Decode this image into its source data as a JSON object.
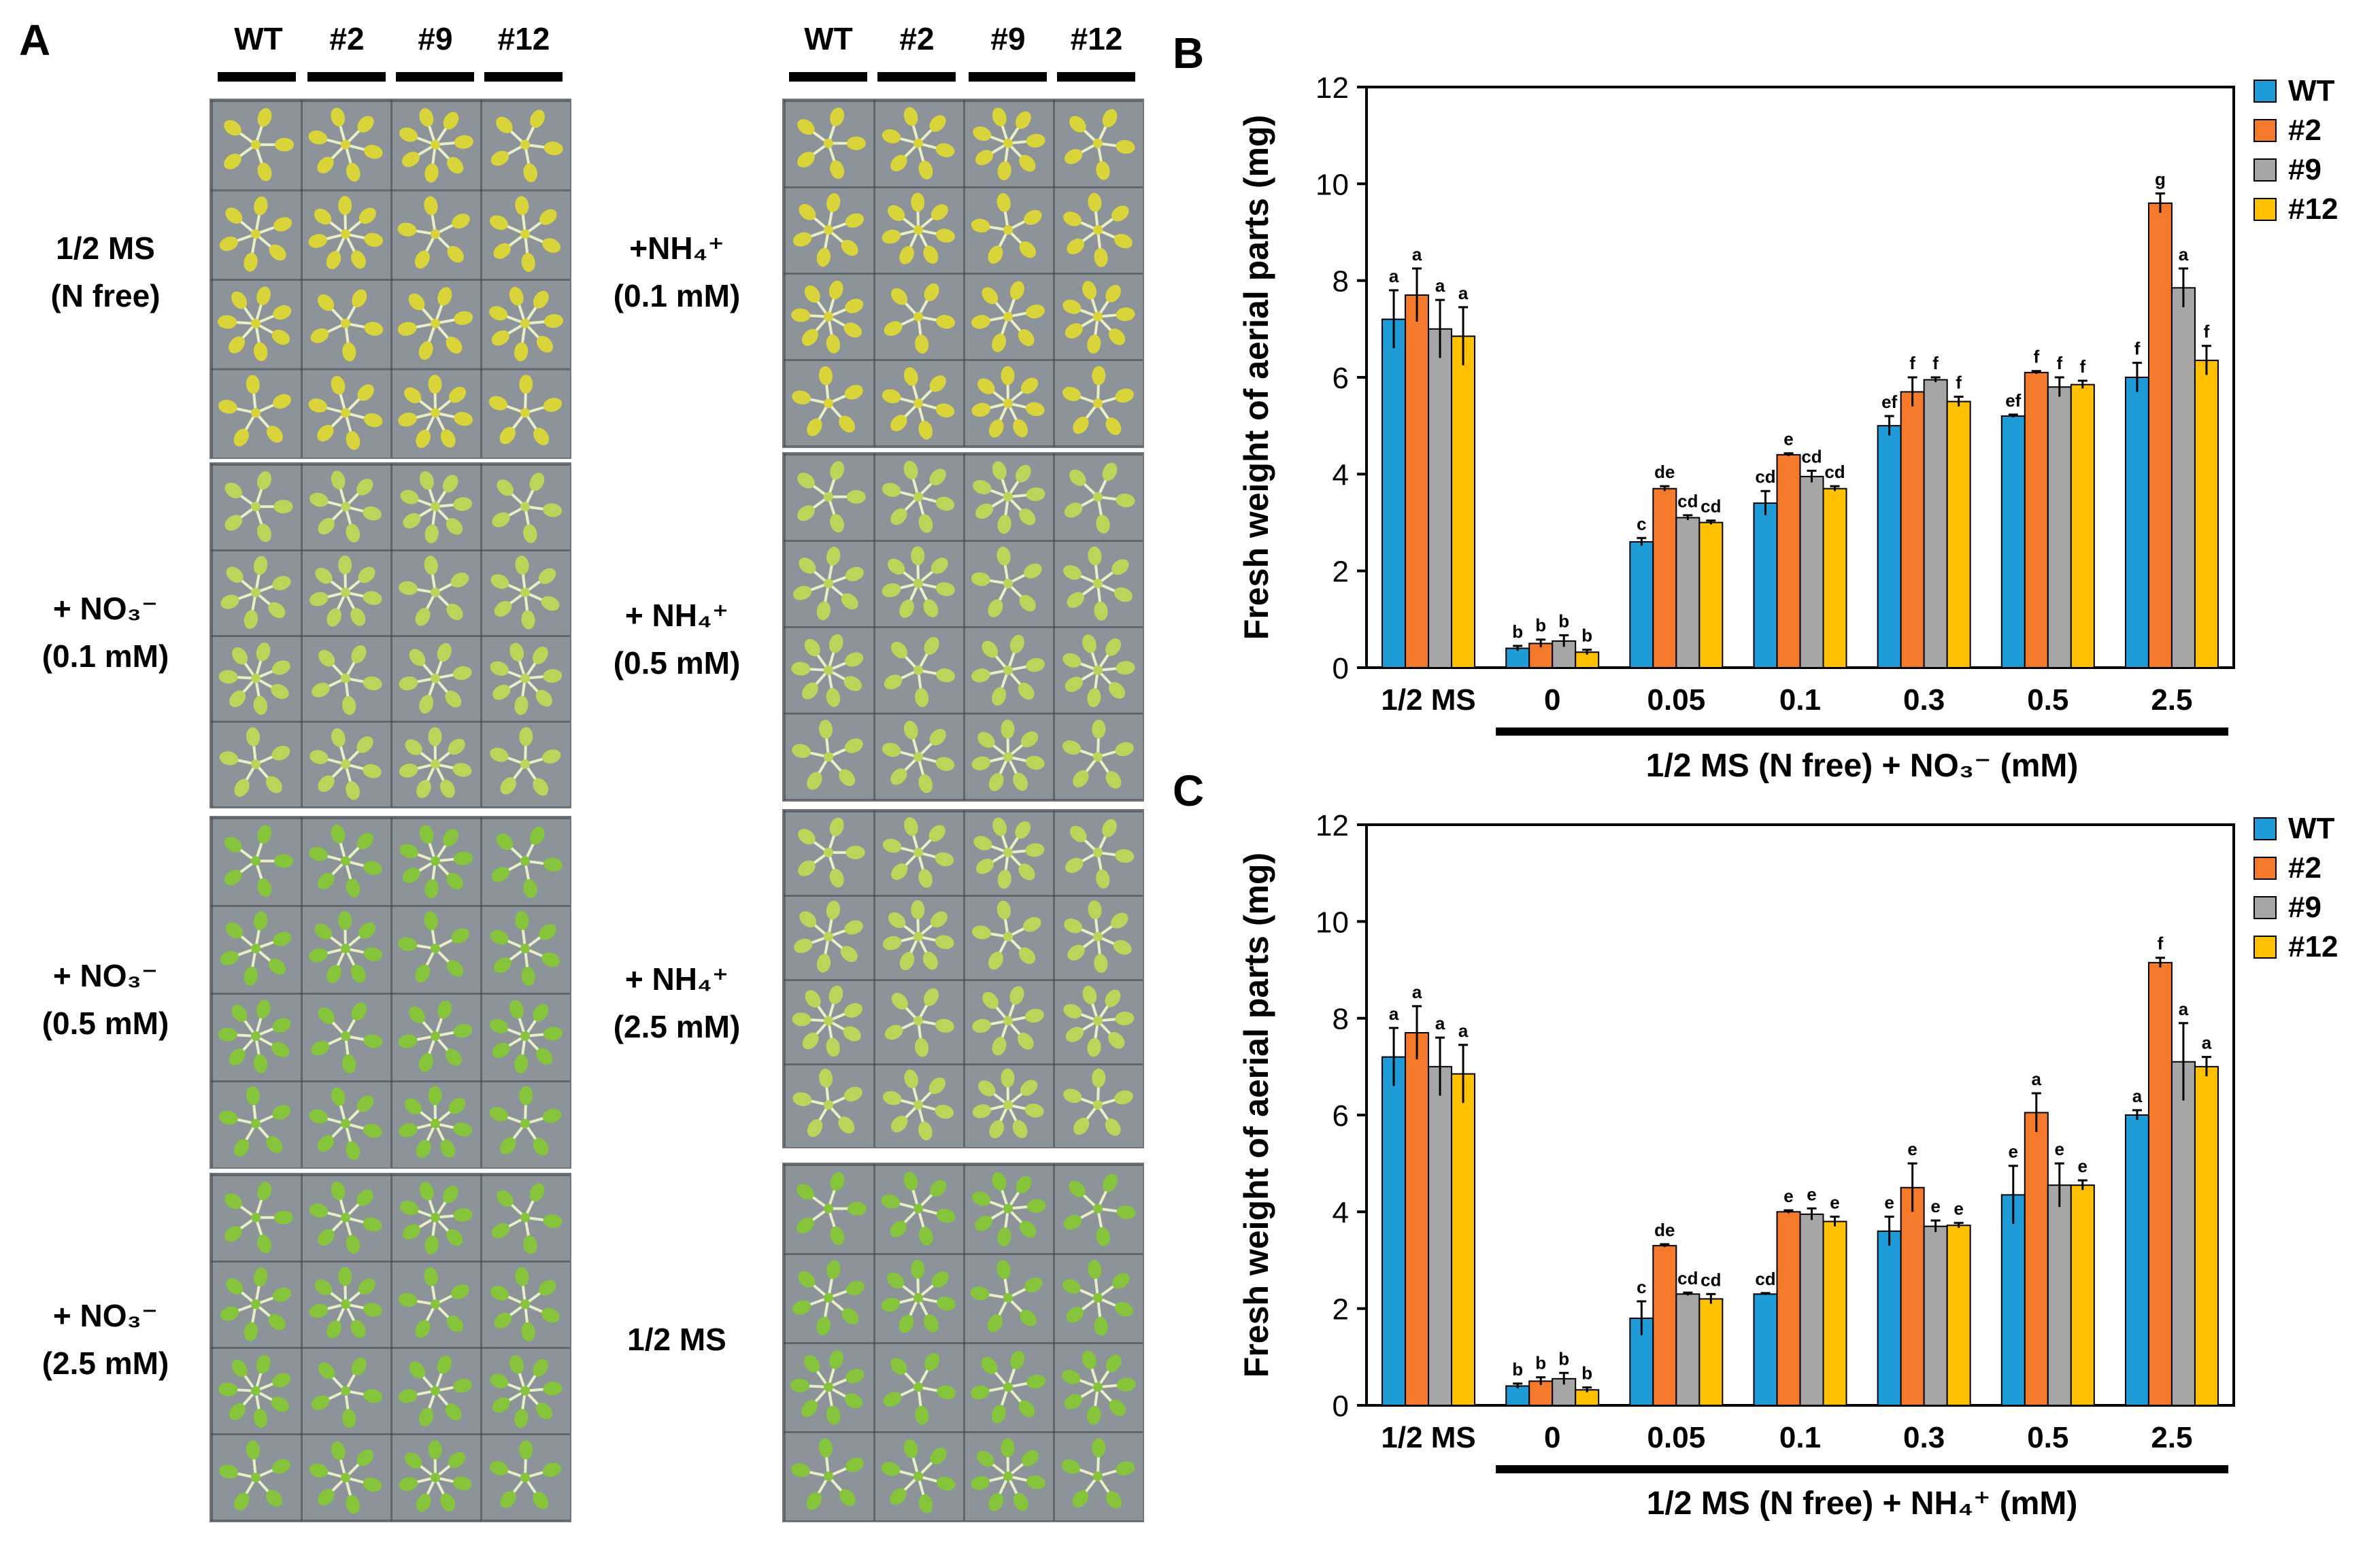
{
  "panel_a": {
    "letter": "A",
    "genotypes": [
      "WT",
      "#2",
      "#9",
      "#12"
    ],
    "left_conditions": [
      {
        "line1": "1/2 MS",
        "line2": "(N free)"
      },
      {
        "line1": "+ NO₃⁻",
        "line2": "(0.1 mM)"
      },
      {
        "line1": "+ NO₃⁻",
        "line2": "(0.5 mM)"
      },
      {
        "line1": "+ NO₃⁻",
        "line2": "(2.5 mM)"
      }
    ],
    "right_conditions": [
      {
        "line1": "+NH₄⁺",
        "line2": "(0.1 mM)"
      },
      {
        "line1": "+ NH₄⁺",
        "line2": "(0.5 mM)"
      },
      {
        "line1": "+ NH₄⁺",
        "line2": "(2.5 mM)"
      },
      {
        "line1": "1/2 MS",
        "line2": ""
      }
    ],
    "plate_colors": {
      "yellow_seedling": "#d8d43a",
      "pale_green_seedling": "#b9d65a",
      "green_seedling": "#86c43c",
      "agar": "#8c949a"
    }
  },
  "chart_data": [
    {
      "panel": "B",
      "type": "bar",
      "title": "",
      "ylabel": "Fresh weight of aerial parts (mg)",
      "xlabel": "1/2 MS (N free) + NO₃⁻ (mM)",
      "ylim": [
        0,
        12
      ],
      "yticks": [
        "0",
        "2",
        "4",
        "6",
        "8",
        "10",
        "12"
      ],
      "categories": [
        "1/2 MS",
        "0",
        "0.05",
        "0.1",
        "0.3",
        "0.5",
        "2.5"
      ],
      "series": [
        {
          "name": "WT",
          "color": "#1f9bd7",
          "values": [
            7.2,
            0.4,
            2.6,
            3.4,
            5.0,
            5.2,
            6.0
          ],
          "errors": [
            0.6,
            0.05,
            0.08,
            0.25,
            0.2,
            0.03,
            0.3
          ],
          "labels": [
            "a",
            "b",
            "c",
            "cd",
            "ef",
            "ef",
            "f"
          ]
        },
        {
          "name": "#2",
          "color": "#f4792a",
          "values": [
            7.7,
            0.5,
            3.7,
            4.4,
            5.7,
            6.1,
            9.6
          ],
          "errors": [
            0.55,
            0.08,
            0.05,
            0.03,
            0.3,
            0.03,
            0.2
          ],
          "labels": [
            "a",
            "b",
            "de",
            "e",
            "f",
            "f",
            "g"
          ]
        },
        {
          "name": "#9",
          "color": "#a6a6a6",
          "values": [
            7.0,
            0.55,
            3.1,
            3.95,
            5.95,
            5.8,
            7.85
          ],
          "errors": [
            0.6,
            0.12,
            0.05,
            0.12,
            0.05,
            0.2,
            0.4
          ],
          "labels": [
            "a",
            "b",
            "cd",
            "cd",
            "f",
            "f",
            "a"
          ]
        },
        {
          "name": "#12",
          "color": "#ffc000",
          "values": [
            6.85,
            0.32,
            3.0,
            3.7,
            5.5,
            5.85,
            6.35
          ],
          "errors": [
            0.6,
            0.05,
            0.04,
            0.05,
            0.1,
            0.08,
            0.3
          ],
          "labels": [
            "a",
            "b",
            "cd",
            "cd",
            "f",
            "f",
            "f"
          ]
        }
      ],
      "legend_position": "right"
    },
    {
      "panel": "C",
      "type": "bar",
      "title": "",
      "ylabel": "Fresh weight of aerial parts (mg)",
      "xlabel": "1/2 MS (N free) + NH₄⁺ (mM)",
      "ylim": [
        0,
        12
      ],
      "yticks": [
        "0",
        "2",
        "4",
        "6",
        "8",
        "10",
        "12"
      ],
      "categories": [
        "1/2 MS",
        "0",
        "0.05",
        "0.1",
        "0.3",
        "0.5",
        "2.5"
      ],
      "series": [
        {
          "name": "WT",
          "color": "#1f9bd7",
          "values": [
            7.2,
            0.4,
            1.8,
            2.3,
            3.6,
            4.35,
            6.0
          ],
          "errors": [
            0.6,
            0.05,
            0.35,
            0.02,
            0.3,
            0.6,
            0.1
          ],
          "labels": [
            "a",
            "b",
            "c",
            "cd",
            "e",
            "e",
            "a"
          ]
        },
        {
          "name": "#2",
          "color": "#f4792a",
          "values": [
            7.7,
            0.5,
            3.3,
            4.0,
            4.5,
            6.05,
            9.15
          ],
          "errors": [
            0.55,
            0.08,
            0.03,
            0.03,
            0.5,
            0.4,
            0.1
          ],
          "labels": [
            "a",
            "b",
            "de",
            "e",
            "e",
            "a",
            "f"
          ]
        },
        {
          "name": "#9",
          "color": "#a6a6a6",
          "values": [
            7.0,
            0.55,
            2.3,
            3.95,
            3.7,
            4.55,
            7.1
          ],
          "errors": [
            0.6,
            0.12,
            0.03,
            0.12,
            0.12,
            0.45,
            0.8
          ],
          "labels": [
            "a",
            "b",
            "cd",
            "e",
            "e",
            "e",
            "a"
          ]
        },
        {
          "name": "#12",
          "color": "#ffc000",
          "values": [
            6.85,
            0.32,
            2.2,
            3.8,
            3.72,
            4.55,
            7.0
          ],
          "errors": [
            0.6,
            0.05,
            0.1,
            0.1,
            0.05,
            0.1,
            0.2
          ],
          "labels": [
            "a",
            "b",
            "cd",
            "e",
            "e",
            "e",
            "a"
          ]
        }
      ],
      "legend_position": "right"
    }
  ]
}
